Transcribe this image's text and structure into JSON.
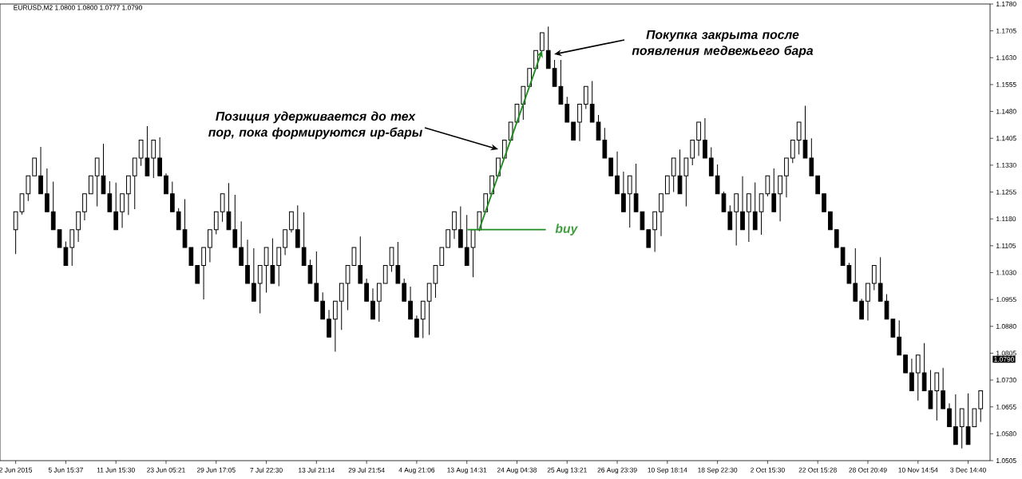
{
  "chart_data": {
    "type": "candlestick",
    "title": "EURUSD,M2 1.0800 1.0800 1.0777 1.0790",
    "categories": [
      "2 Jun 2015",
      null,
      null,
      null,
      null,
      null,
      null,
      null,
      "5 Jun 15:37",
      null,
      null,
      null,
      null,
      null,
      null,
      null,
      "11 Jun 15:30",
      null,
      null,
      null,
      null,
      null,
      null,
      null,
      "23 Jun 05:21",
      null,
      null,
      null,
      null,
      null,
      null,
      null,
      "29 Jun 17:05",
      null,
      null,
      null,
      null,
      null,
      null,
      null,
      "7 Jul 22:30",
      null,
      null,
      null,
      null,
      null,
      null,
      null,
      "13 Jul 21:14",
      null,
      null,
      null,
      null,
      null,
      null,
      null,
      "29 Jul 21:54",
      null,
      null,
      null,
      null,
      null,
      null,
      null,
      "4 Aug 21:06",
      null,
      null,
      null,
      null,
      null,
      null,
      null,
      "13 Aug 14:31",
      null,
      null,
      null,
      null,
      null,
      null,
      null,
      "24 Aug 04:38",
      null,
      null,
      null,
      null,
      null,
      null,
      null,
      "25 Aug 13:21",
      null,
      null,
      null,
      null,
      null,
      null,
      null,
      "26 Aug 23:39",
      null,
      null,
      null,
      null,
      null,
      null,
      null,
      "10 Sep 18:14",
      null,
      null,
      null,
      null,
      null,
      null,
      null,
      "18 Sep 22:30",
      null,
      null,
      null,
      null,
      null,
      null,
      null,
      "2 Oct 15:30",
      null,
      null,
      null,
      null,
      null,
      null,
      null,
      "22 Oct 15:28",
      null,
      null,
      null,
      null,
      null,
      null,
      null,
      "28 Oct 20:49",
      null,
      null,
      null,
      null,
      null,
      null,
      null,
      "10 Nov 14:54",
      null,
      null,
      null,
      null,
      null,
      null,
      null,
      "3 Dec 14:40",
      null,
      null
    ],
    "ohlc": [
      [
        1.115,
        1.12,
        1.1082,
        1.12
      ],
      [
        1.12,
        1.125,
        1.1192,
        1.125
      ],
      [
        1.125,
        1.13,
        1.123,
        1.13
      ],
      [
        1.13,
        1.135,
        1.13,
        1.135
      ],
      [
        1.13,
        1.1381,
        1.125,
        1.125
      ],
      [
        1.125,
        1.1321,
        1.12,
        1.12
      ],
      [
        1.12,
        1.1284,
        1.115,
        1.115
      ],
      [
        1.115,
        1.115,
        1.11,
        1.11
      ],
      [
        1.11,
        1.1117,
        1.105,
        1.105
      ],
      [
        1.11,
        1.115,
        1.1049,
        1.115
      ],
      [
        1.115,
        1.12,
        1.1116,
        1.12
      ],
      [
        1.12,
        1.125,
        1.1176,
        1.125
      ],
      [
        1.125,
        1.13,
        1.125,
        1.13
      ],
      [
        1.13,
        1.135,
        1.1215,
        1.135
      ],
      [
        1.13,
        1.139,
        1.125,
        1.125
      ],
      [
        1.125,
        1.1285,
        1.12,
        1.12
      ],
      [
        1.12,
        1.1281,
        1.115,
        1.115
      ],
      [
        1.12,
        1.125,
        1.1155,
        1.125
      ],
      [
        1.125,
        1.13,
        1.1191,
        1.13
      ],
      [
        1.13,
        1.135,
        1.1207,
        1.135
      ],
      [
        1.135,
        1.14,
        1.1328,
        1.14
      ],
      [
        1.135,
        1.1439,
        1.13,
        1.13
      ],
      [
        1.135,
        1.14,
        1.1294,
        1.14
      ],
      [
        1.135,
        1.1408,
        1.13,
        1.13
      ],
      [
        1.13,
        1.1307,
        1.125,
        1.125
      ],
      [
        1.125,
        1.1284,
        1.12,
        1.12
      ],
      [
        1.12,
        1.121,
        1.115,
        1.115
      ],
      [
        1.115,
        1.1235,
        1.11,
        1.11
      ],
      [
        1.11,
        1.11,
        1.105,
        1.105
      ],
      [
        1.105,
        1.105,
        1.1,
        1.1
      ],
      [
        1.105,
        1.11,
        1.0955,
        1.11
      ],
      [
        1.11,
        1.115,
        1.1059,
        1.115
      ],
      [
        1.115,
        1.12,
        1.1137,
        1.12
      ],
      [
        1.12,
        1.125,
        1.1172,
        1.125
      ],
      [
        1.12,
        1.128,
        1.115,
        1.115
      ],
      [
        1.115,
        1.1247,
        1.11,
        1.11
      ],
      [
        1.11,
        1.1173,
        1.105,
        1.105
      ],
      [
        1.105,
        1.1122,
        1.1,
        1.1
      ],
      [
        1.1,
        1.1098,
        1.095,
        1.095
      ],
      [
        1.1,
        1.105,
        1.0916,
        1.105
      ],
      [
        1.105,
        1.11,
        1.0974,
        1.11
      ],
      [
        1.105,
        1.1126,
        1.1,
        1.1
      ],
      [
        1.105,
        1.11,
        1.0992,
        1.11
      ],
      [
        1.11,
        1.115,
        1.1079,
        1.115
      ],
      [
        1.115,
        1.12,
        1.1142,
        1.12
      ],
      [
        1.115,
        1.1218,
        1.11,
        1.11
      ],
      [
        1.11,
        1.1198,
        1.105,
        1.105
      ],
      [
        1.105,
        1.1066,
        1.1,
        1.1
      ],
      [
        1.1,
        1.1089,
        1.095,
        1.095
      ],
      [
        1.095,
        1.0975,
        1.09,
        1.09
      ],
      [
        1.09,
        1.0926,
        1.085,
        1.085
      ],
      [
        1.09,
        1.095,
        1.0809,
        1.095
      ],
      [
        1.095,
        1.1,
        1.087,
        1.1
      ],
      [
        1.1,
        1.105,
        1.0925,
        1.105
      ],
      [
        1.105,
        1.11,
        1.105,
        1.11
      ],
      [
        1.105,
        1.1131,
        1.1,
        1.1
      ],
      [
        1.1,
        1.1013,
        1.095,
        1.095
      ],
      [
        1.095,
        1.0986,
        1.09,
        1.09
      ],
      [
        1.095,
        1.1,
        1.0893,
        1.1
      ],
      [
        1.1,
        1.105,
        1.1,
        1.105
      ],
      [
        1.105,
        1.11,
        1.1032,
        1.11
      ],
      [
        1.105,
        1.1116,
        1.1,
        1.1
      ],
      [
        1.1,
        1.1013,
        1.095,
        1.095
      ],
      [
        1.095,
        1.0991,
        1.09,
        1.09
      ],
      [
        1.09,
        1.091,
        1.085,
        1.085
      ],
      [
        1.09,
        1.095,
        1.0847,
        1.095
      ],
      [
        1.095,
        1.1,
        1.0856,
        1.1
      ],
      [
        1.1,
        1.105,
        1.096,
        1.105
      ],
      [
        1.105,
        1.11,
        1.105,
        1.11
      ],
      [
        1.11,
        1.115,
        1.11,
        1.115
      ],
      [
        1.115,
        1.12,
        1.1124,
        1.12
      ],
      [
        1.115,
        1.1215,
        1.11,
        1.11
      ],
      [
        1.11,
        1.1191,
        1.105,
        1.105
      ],
      [
        1.11,
        1.115,
        1.1017,
        1.115
      ],
      [
        1.115,
        1.12,
        1.1146,
        1.12
      ],
      [
        1.12,
        1.125,
        1.12,
        1.125
      ],
      [
        1.125,
        1.13,
        1.125,
        1.13
      ],
      [
        1.13,
        1.135,
        1.13,
        1.135
      ],
      [
        1.135,
        1.14,
        1.135,
        1.14
      ],
      [
        1.14,
        1.145,
        1.14,
        1.145
      ],
      [
        1.145,
        1.15,
        1.145,
        1.15
      ],
      [
        1.15,
        1.155,
        1.1457,
        1.155
      ],
      [
        1.155,
        1.16,
        1.155,
        1.16
      ],
      [
        1.16,
        1.165,
        1.16,
        1.165
      ],
      [
        1.165,
        1.17,
        1.165,
        1.17
      ],
      [
        1.165,
        1.1717,
        1.16,
        1.16
      ],
      [
        1.16,
        1.1624,
        1.155,
        1.155
      ],
      [
        1.155,
        1.1624,
        1.15,
        1.15
      ],
      [
        1.15,
        1.1521,
        1.145,
        1.145
      ],
      [
        1.145,
        1.145,
        1.14,
        1.14
      ],
      [
        1.145,
        1.15,
        1.1397,
        1.15
      ],
      [
        1.15,
        1.155,
        1.1487,
        1.155
      ],
      [
        1.15,
        1.1565,
        1.145,
        1.145
      ],
      [
        1.145,
        1.147,
        1.14,
        1.14
      ],
      [
        1.14,
        1.1434,
        1.135,
        1.135
      ],
      [
        1.135,
        1.135,
        1.13,
        1.13
      ],
      [
        1.13,
        1.1368,
        1.125,
        1.125
      ],
      [
        1.125,
        1.1312,
        1.12,
        1.12
      ],
      [
        1.125,
        1.13,
        1.1156,
        1.13
      ],
      [
        1.125,
        1.1334,
        1.12,
        1.12
      ],
      [
        1.12,
        1.12,
        1.115,
        1.115
      ],
      [
        1.115,
        1.115,
        1.11,
        1.11
      ],
      [
        1.115,
        1.12,
        1.1088,
        1.12
      ],
      [
        1.12,
        1.125,
        1.1132,
        1.125
      ],
      [
        1.125,
        1.13,
        1.125,
        1.13
      ],
      [
        1.13,
        1.135,
        1.1255,
        1.135
      ],
      [
        1.13,
        1.1374,
        1.125,
        1.125
      ],
      [
        1.13,
        1.135,
        1.1215,
        1.135
      ],
      [
        1.135,
        1.14,
        1.133,
        1.14
      ],
      [
        1.14,
        1.145,
        1.1356,
        1.145
      ],
      [
        1.14,
        1.1461,
        1.135,
        1.135
      ],
      [
        1.135,
        1.138,
        1.13,
        1.13
      ],
      [
        1.13,
        1.1332,
        1.125,
        1.125
      ],
      [
        1.125,
        1.1256,
        1.12,
        1.12
      ],
      [
        1.12,
        1.1218,
        1.115,
        1.115
      ],
      [
        1.12,
        1.125,
        1.1106,
        1.125
      ],
      [
        1.12,
        1.1299,
        1.115,
        1.115
      ],
      [
        1.12,
        1.125,
        1.1116,
        1.125
      ],
      [
        1.12,
        1.1282,
        1.115,
        1.115
      ],
      [
        1.12,
        1.125,
        1.1136,
        1.125
      ],
      [
        1.125,
        1.13,
        1.1243,
        1.13
      ],
      [
        1.125,
        1.1321,
        1.12,
        1.12
      ],
      [
        1.125,
        1.13,
        1.1173,
        1.13
      ],
      [
        1.13,
        1.135,
        1.124,
        1.135
      ],
      [
        1.135,
        1.14,
        1.1336,
        1.14
      ],
      [
        1.14,
        1.145,
        1.136,
        1.145
      ],
      [
        1.14,
        1.1496,
        1.135,
        1.135
      ],
      [
        1.135,
        1.1405,
        1.13,
        1.13
      ],
      [
        1.13,
        1.13,
        1.125,
        1.125
      ],
      [
        1.125,
        1.125,
        1.12,
        1.12
      ],
      [
        1.12,
        1.12,
        1.115,
        1.115
      ],
      [
        1.115,
        1.115,
        1.11,
        1.11
      ],
      [
        1.11,
        1.11,
        1.105,
        1.105
      ],
      [
        1.105,
        1.1057,
        1.1,
        1.1
      ],
      [
        1.1,
        1.1098,
        1.095,
        1.095
      ],
      [
        1.095,
        1.0957,
        1.09,
        1.09
      ],
      [
        1.095,
        1.1,
        1.0896,
        1.1
      ],
      [
        1.1,
        1.105,
        1.0981,
        1.105
      ],
      [
        1.1,
        1.1073,
        1.095,
        1.095
      ],
      [
        1.095,
        1.097,
        1.09,
        1.09
      ],
      [
        1.09,
        1.09,
        1.085,
        1.085
      ],
      [
        1.085,
        1.0897,
        1.08,
        1.08
      ],
      [
        1.08,
        1.08,
        1.075,
        1.075
      ],
      [
        1.075,
        1.079,
        1.07,
        1.07
      ],
      [
        1.075,
        1.08,
        1.0673,
        1.08
      ],
      [
        1.075,
        1.0833,
        1.07,
        1.07
      ],
      [
        1.07,
        1.0758,
        1.065,
        1.065
      ],
      [
        1.07,
        1.075,
        1.0617,
        1.075
      ],
      [
        1.07,
        1.0764,
        1.065,
        1.065
      ],
      [
        1.065,
        1.0665,
        1.06,
        1.06
      ],
      [
        1.06,
        1.069,
        1.055,
        1.055
      ],
      [
        1.06,
        1.065,
        1.0539,
        1.065
      ],
      [
        1.06,
        1.0693,
        1.055,
        1.055
      ],
      [
        1.06,
        1.065,
        1.06,
        1.065
      ],
      [
        1.065,
        1.07,
        1.0613,
        1.07
      ]
    ],
    "ylim": [
      1.0505,
      1.178
    ],
    "yticks": [
      {
        "value": 1.0505,
        "label": "1.0505"
      },
      {
        "value": 1.058,
        "label": "1.0580"
      },
      {
        "value": 1.0655,
        "label": "1.0655"
      },
      {
        "value": 1.073,
        "label": "1.0730"
      },
      {
        "value": 1.0805,
        "label": "1.0805"
      },
      {
        "value": 1.088,
        "label": "1.0880"
      },
      {
        "value": 1.0955,
        "label": "1.0955"
      },
      {
        "value": 1.103,
        "label": "1.1030"
      },
      {
        "value": 1.1105,
        "label": "1.1105"
      },
      {
        "value": 1.118,
        "label": "1.1180"
      },
      {
        "value": 1.1255,
        "label": "1.1255"
      },
      {
        "value": 1.133,
        "label": "1.1330"
      },
      {
        "value": 1.1405,
        "label": "1.1405"
      },
      {
        "value": 1.148,
        "label": "1.1480"
      },
      {
        "value": 1.1555,
        "label": "1.1555"
      },
      {
        "value": 1.163,
        "label": "1.1630"
      },
      {
        "value": 1.1705,
        "label": "1.1705"
      },
      {
        "value": 1.178,
        "label": "1.1780"
      }
    ],
    "annotations": [
      "Позиция удерживается до тех пор, пока формируются ир-бары",
      "Покупка закрыта после появления медвежьего бара",
      "1.0790"
    ],
    "ref_lines": [
      {
        "axis": "y",
        "value": 1.115,
        "label": "buy",
        "color": "#1e8c1e"
      }
    ]
  }
}
